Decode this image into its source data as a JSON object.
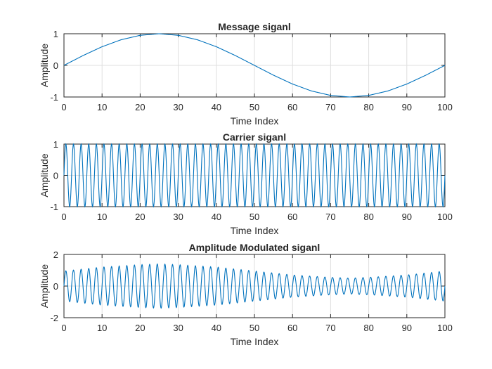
{
  "chart_data": [
    {
      "type": "line",
      "title": "Message siganl",
      "xlabel": "Time Index",
      "ylabel": "Amplitude",
      "xlim": [
        0,
        100
      ],
      "ylim": [
        -1,
        1
      ],
      "xticks": [
        "0",
        "10",
        "20",
        "30",
        "40",
        "50",
        "60",
        "70",
        "80",
        "90",
        "100"
      ],
      "yticks": [
        "-1",
        "0",
        "1"
      ],
      "grid": true,
      "color": "#0072bd",
      "series": [
        {
          "x": [
            0,
            5,
            10,
            15,
            20,
            25,
            30,
            35,
            40,
            45,
            50,
            55,
            60,
            65,
            70,
            75,
            80,
            85,
            90,
            95,
            100
          ],
          "y": [
            0,
            0.31,
            0.59,
            0.81,
            0.95,
            1,
            0.95,
            0.81,
            0.59,
            0.31,
            0,
            -0.31,
            -0.59,
            -0.81,
            -0.95,
            -1,
            -0.95,
            -0.81,
            -0.59,
            -0.31,
            0
          ]
        }
      ]
    },
    {
      "type": "line",
      "title": "Carrier siganl",
      "xlabel": "Time Index",
      "ylabel": "Amplitude",
      "xlim": [
        0,
        100
      ],
      "ylim": [
        -1,
        1
      ],
      "xticks": [
        "0",
        "10",
        "20",
        "30",
        "40",
        "50",
        "60",
        "70",
        "80",
        "90",
        "100"
      ],
      "yticks": [
        "-1",
        "0",
        "1"
      ],
      "grid": true,
      "color": "#0072bd",
      "series": [
        {
          "x": [
            0,
            0.5,
            1,
            1.5,
            2,
            2.5,
            3,
            3.5,
            4
          ],
          "y": [
            0,
            1,
            0,
            -1,
            0,
            1,
            0,
            -1,
            0
          ],
          "pattern": "sine wave, amplitude 1, period 2 time units, repeating over 0–100"
        }
      ]
    },
    {
      "type": "line",
      "title": "Amplitude Modulated siganl",
      "xlabel": "Time Index",
      "ylabel": "Amplitude",
      "xlim": [
        0,
        100
      ],
      "ylim": [
        -2,
        2
      ],
      "xticks": [
        "0",
        "10",
        "20",
        "30",
        "40",
        "50",
        "60",
        "70",
        "80",
        "90",
        "100"
      ],
      "yticks": [
        "-2",
        "0",
        "2"
      ],
      "grid": true,
      "color": "#0072bd",
      "series": [
        {
          "x": [
            0,
            10,
            20,
            25,
            30,
            40,
            50,
            60,
            70,
            75,
            80,
            90,
            100
          ],
          "y_envelope_peak": [
            0.95,
            1.2,
            1.35,
            1.4,
            1.35,
            1.2,
            0.95,
            0.7,
            0.55,
            0.5,
            0.55,
            0.7,
            0.95
          ],
          "pattern": "carrier scaled by a slowly varying envelope (max ≈1.4 near x=25, min ≈0.5 near x=75)"
        }
      ]
    }
  ]
}
